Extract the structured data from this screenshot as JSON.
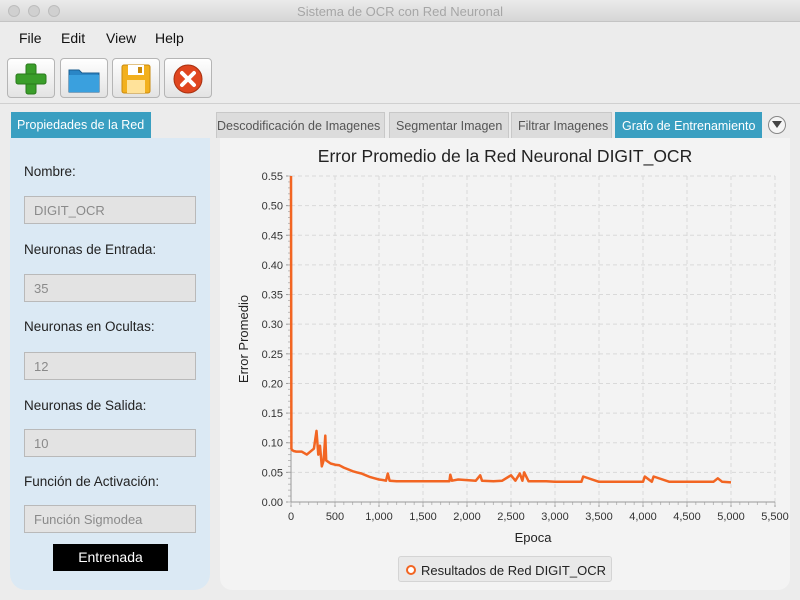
{
  "window": {
    "title": "Sistema de OCR con Red Neuronal"
  },
  "menu": {
    "items": [
      "File",
      "Edit",
      "View",
      "Help"
    ]
  },
  "toolbar": {
    "buttons": [
      {
        "icon": "plus-icon",
        "color": "#3a9e2a"
      },
      {
        "icon": "folder-icon",
        "color": "#2a86c6"
      },
      {
        "icon": "save-icon",
        "color": "#f2b01e"
      },
      {
        "icon": "close-icon",
        "color": "#e0461f"
      }
    ]
  },
  "left_panel": {
    "tab_label": "Propiedades de la Red",
    "name_label": "Nombre:",
    "name_value": "DIGIT_OCR",
    "input_neurons_label": "Neuronas de Entrada:",
    "input_neurons_value": "35",
    "hidden_neurons_label": "Neuronas en Ocultas:",
    "hidden_neurons_value": "12",
    "output_neurons_label": "Neuronas de Salida:",
    "output_neurons_value": "10",
    "activation_label": "Función de Activación:",
    "activation_value": "Función Sigmodea",
    "status_label": "Entrenada"
  },
  "tabs": [
    {
      "label": "Descodificación de Imagenes",
      "active": false
    },
    {
      "label": "Segmentar Imagen",
      "active": false
    },
    {
      "label": "Filtrar Imagenes",
      "active": false
    },
    {
      "label": "Grafo de Entrenamiento",
      "active": true
    }
  ],
  "colors": {
    "accent": "#3a9fc1",
    "series": "#f26522",
    "panel": "#dbe9f4"
  },
  "chart_data": {
    "type": "line",
    "title": "Error Promedio de la Red Neuronal DIGIT_OCR",
    "xlabel": "Epoca",
    "ylabel": "Error Promedio",
    "xlim": [
      0,
      5500
    ],
    "ylim": [
      0,
      0.55
    ],
    "x_ticks": [
      "0",
      "500",
      "1,000",
      "1,500",
      "2,000",
      "2,500",
      "3,000",
      "3,500",
      "4,000",
      "4,500",
      "5,000",
      "5,500"
    ],
    "y_ticks": [
      "0.00",
      "0.05",
      "0.10",
      "0.15",
      "0.20",
      "0.25",
      "0.30",
      "0.35",
      "0.40",
      "0.45",
      "0.50",
      "0.55"
    ],
    "grid": true,
    "legend": "bottom",
    "series": [
      {
        "name": "Resultados de Red DIGIT_OCR",
        "x": [
          0,
          5,
          10,
          30,
          60,
          120,
          180,
          220,
          260,
          290,
          310,
          330,
          350,
          370,
          390,
          400,
          420,
          450,
          500,
          550,
          600,
          650,
          700,
          750,
          800,
          850,
          900,
          950,
          1000,
          1050,
          1080,
          1100,
          1120,
          1200,
          1300,
          1400,
          1500,
          1600,
          1700,
          1800,
          1810,
          1830,
          1900,
          2000,
          2100,
          2150,
          2170,
          2300,
          2400,
          2500,
          2550,
          2600,
          2630,
          2650,
          2700,
          2800,
          2900,
          3000,
          3100,
          3300,
          3320,
          3500,
          3600,
          3800,
          3900,
          4000,
          4020,
          4100,
          4120,
          4300,
          4500,
          4600,
          4700,
          4800,
          4850,
          4900,
          5000
        ],
        "values": [
          0.55,
          0.09,
          0.088,
          0.086,
          0.085,
          0.085,
          0.08,
          0.085,
          0.09,
          0.12,
          0.08,
          0.095,
          0.06,
          0.07,
          0.112,
          0.07,
          0.068,
          0.065,
          0.063,
          0.062,
          0.058,
          0.055,
          0.052,
          0.05,
          0.048,
          0.045,
          0.042,
          0.04,
          0.038,
          0.037,
          0.036,
          0.048,
          0.036,
          0.035,
          0.035,
          0.035,
          0.035,
          0.035,
          0.035,
          0.035,
          0.046,
          0.036,
          0.038,
          0.037,
          0.036,
          0.045,
          0.036,
          0.035,
          0.036,
          0.045,
          0.036,
          0.048,
          0.036,
          0.05,
          0.035,
          0.035,
          0.035,
          0.034,
          0.034,
          0.034,
          0.043,
          0.034,
          0.034,
          0.034,
          0.034,
          0.034,
          0.043,
          0.034,
          0.043,
          0.034,
          0.034,
          0.034,
          0.034,
          0.034,
          0.04,
          0.034,
          0.033
        ]
      }
    ]
  }
}
